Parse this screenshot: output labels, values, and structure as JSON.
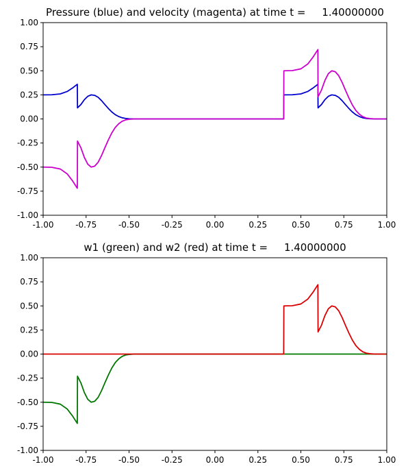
{
  "chart_data": [
    {
      "type": "line",
      "title": "Pressure (blue) and velocity (magenta) at time t =     1.40000000",
      "xlabel": "",
      "ylabel": "",
      "xlim": [
        -1.0,
        1.0
      ],
      "ylim": [
        -1.0,
        1.0
      ],
      "xticks": [
        "-1.00",
        "-0.75",
        "-0.50",
        "-0.25",
        "0.00",
        "0.25",
        "0.50",
        "0.75",
        "1.00"
      ],
      "yticks": [
        "-1.00",
        "-0.75",
        "-0.50",
        "-0.25",
        "0.00",
        "0.25",
        "0.50",
        "0.75",
        "1.00"
      ],
      "grid": false,
      "series": [
        {
          "color": "#0000cc",
          "points": [
            [
              -1.0,
              0.25
            ],
            [
              -0.95,
              0.251
            ],
            [
              -0.9,
              0.26
            ],
            [
              -0.86,
              0.285
            ],
            [
              -0.83,
              0.32
            ],
            [
              -0.801,
              0.36
            ],
            [
              -0.8,
              0.115
            ],
            [
              -0.78,
              0.15
            ],
            [
              -0.76,
              0.2
            ],
            [
              -0.74,
              0.235
            ],
            [
              -0.72,
              0.25
            ],
            [
              -0.7,
              0.245
            ],
            [
              -0.68,
              0.225
            ],
            [
              -0.66,
              0.19
            ],
            [
              -0.64,
              0.148
            ],
            [
              -0.62,
              0.108
            ],
            [
              -0.6,
              0.072
            ],
            [
              -0.58,
              0.044
            ],
            [
              -0.56,
              0.025
            ],
            [
              -0.54,
              0.012
            ],
            [
              -0.52,
              0.005
            ],
            [
              -0.5,
              0.002
            ],
            [
              -0.47,
              0.0
            ],
            [
              0.4,
              0.0
            ],
            [
              0.401,
              0.25
            ],
            [
              0.45,
              0.251
            ],
            [
              0.5,
              0.26
            ],
            [
              0.54,
              0.285
            ],
            [
              0.57,
              0.32
            ],
            [
              0.599,
              0.36
            ],
            [
              0.6,
              0.115
            ],
            [
              0.62,
              0.15
            ],
            [
              0.64,
              0.2
            ],
            [
              0.66,
              0.235
            ],
            [
              0.68,
              0.25
            ],
            [
              0.7,
              0.245
            ],
            [
              0.72,
              0.225
            ],
            [
              0.74,
              0.19
            ],
            [
              0.76,
              0.148
            ],
            [
              0.78,
              0.108
            ],
            [
              0.8,
              0.072
            ],
            [
              0.82,
              0.044
            ],
            [
              0.84,
              0.025
            ],
            [
              0.86,
              0.012
            ],
            [
              0.88,
              0.005
            ],
            [
              0.9,
              0.002
            ],
            [
              0.93,
              0.0
            ],
            [
              1.0,
              0.0
            ]
          ]
        },
        {
          "color": "#cc00cc",
          "points": [
            [
              -1.0,
              -0.5
            ],
            [
              -0.95,
              -0.502
            ],
            [
              -0.9,
              -0.52
            ],
            [
              -0.86,
              -0.57
            ],
            [
              -0.83,
              -0.64
            ],
            [
              -0.801,
              -0.72
            ],
            [
              -0.8,
              -0.23
            ],
            [
              -0.78,
              -0.3
            ],
            [
              -0.76,
              -0.4
            ],
            [
              -0.74,
              -0.47
            ],
            [
              -0.72,
              -0.5
            ],
            [
              -0.7,
              -0.49
            ],
            [
              -0.68,
              -0.45
            ],
            [
              -0.66,
              -0.38
            ],
            [
              -0.64,
              -0.296
            ],
            [
              -0.62,
              -0.216
            ],
            [
              -0.6,
              -0.144
            ],
            [
              -0.58,
              -0.088
            ],
            [
              -0.56,
              -0.05
            ],
            [
              -0.54,
              -0.024
            ],
            [
              -0.52,
              -0.01
            ],
            [
              -0.5,
              -0.004
            ],
            [
              -0.47,
              0.0
            ],
            [
              0.4,
              0.0
            ],
            [
              0.401,
              0.5
            ],
            [
              0.45,
              0.502
            ],
            [
              0.5,
              0.52
            ],
            [
              0.54,
              0.57
            ],
            [
              0.57,
              0.64
            ],
            [
              0.599,
              0.72
            ],
            [
              0.6,
              0.23
            ],
            [
              0.62,
              0.3
            ],
            [
              0.64,
              0.4
            ],
            [
              0.66,
              0.47
            ],
            [
              0.68,
              0.5
            ],
            [
              0.7,
              0.49
            ],
            [
              0.72,
              0.45
            ],
            [
              0.74,
              0.38
            ],
            [
              0.76,
              0.296
            ],
            [
              0.78,
              0.216
            ],
            [
              0.8,
              0.144
            ],
            [
              0.82,
              0.088
            ],
            [
              0.84,
              0.05
            ],
            [
              0.86,
              0.024
            ],
            [
              0.88,
              0.01
            ],
            [
              0.9,
              0.004
            ],
            [
              0.93,
              0.0
            ],
            [
              1.0,
              0.0
            ]
          ]
        }
      ]
    },
    {
      "type": "line",
      "title": "w1 (green) and w2 (red) at time t =     1.40000000",
      "xlabel": "",
      "ylabel": "",
      "xlim": [
        -1.0,
        1.0
      ],
      "ylim": [
        -1.0,
        1.0
      ],
      "xticks": [
        "-1.00",
        "-0.75",
        "-0.50",
        "-0.25",
        "0.00",
        "0.25",
        "0.50",
        "0.75",
        "1.00"
      ],
      "yticks": [
        "-1.00",
        "-0.75",
        "-0.50",
        "-0.25",
        "0.00",
        "0.25",
        "0.50",
        "0.75",
        "1.00"
      ],
      "grid": false,
      "series": [
        {
          "color": "#007700",
          "points": [
            [
              -1.0,
              -0.5
            ],
            [
              -0.95,
              -0.502
            ],
            [
              -0.9,
              -0.52
            ],
            [
              -0.86,
              -0.57
            ],
            [
              -0.83,
              -0.64
            ],
            [
              -0.801,
              -0.72
            ],
            [
              -0.8,
              -0.23
            ],
            [
              -0.78,
              -0.3
            ],
            [
              -0.76,
              -0.4
            ],
            [
              -0.74,
              -0.47
            ],
            [
              -0.72,
              -0.5
            ],
            [
              -0.7,
              -0.49
            ],
            [
              -0.68,
              -0.45
            ],
            [
              -0.66,
              -0.38
            ],
            [
              -0.64,
              -0.296
            ],
            [
              -0.62,
              -0.216
            ],
            [
              -0.6,
              -0.144
            ],
            [
              -0.58,
              -0.088
            ],
            [
              -0.56,
              -0.05
            ],
            [
              -0.54,
              -0.024
            ],
            [
              -0.52,
              -0.01
            ],
            [
              -0.5,
              -0.004
            ],
            [
              -0.47,
              0.0
            ],
            [
              1.0,
              0.0
            ]
          ]
        },
        {
          "color": "#dd0000",
          "points": [
            [
              -1.0,
              0.0
            ],
            [
              0.4,
              0.0
            ],
            [
              0.401,
              0.5
            ],
            [
              0.45,
              0.502
            ],
            [
              0.5,
              0.52
            ],
            [
              0.54,
              0.57
            ],
            [
              0.57,
              0.64
            ],
            [
              0.599,
              0.72
            ],
            [
              0.6,
              0.23
            ],
            [
              0.62,
              0.3
            ],
            [
              0.64,
              0.4
            ],
            [
              0.66,
              0.47
            ],
            [
              0.68,
              0.5
            ],
            [
              0.7,
              0.49
            ],
            [
              0.72,
              0.45
            ],
            [
              0.74,
              0.38
            ],
            [
              0.76,
              0.296
            ],
            [
              0.78,
              0.216
            ],
            [
              0.8,
              0.144
            ],
            [
              0.82,
              0.088
            ],
            [
              0.84,
              0.05
            ],
            [
              0.86,
              0.024
            ],
            [
              0.88,
              0.01
            ],
            [
              0.9,
              0.004
            ],
            [
              0.93,
              0.0
            ],
            [
              1.0,
              0.0
            ]
          ]
        }
      ]
    }
  ]
}
